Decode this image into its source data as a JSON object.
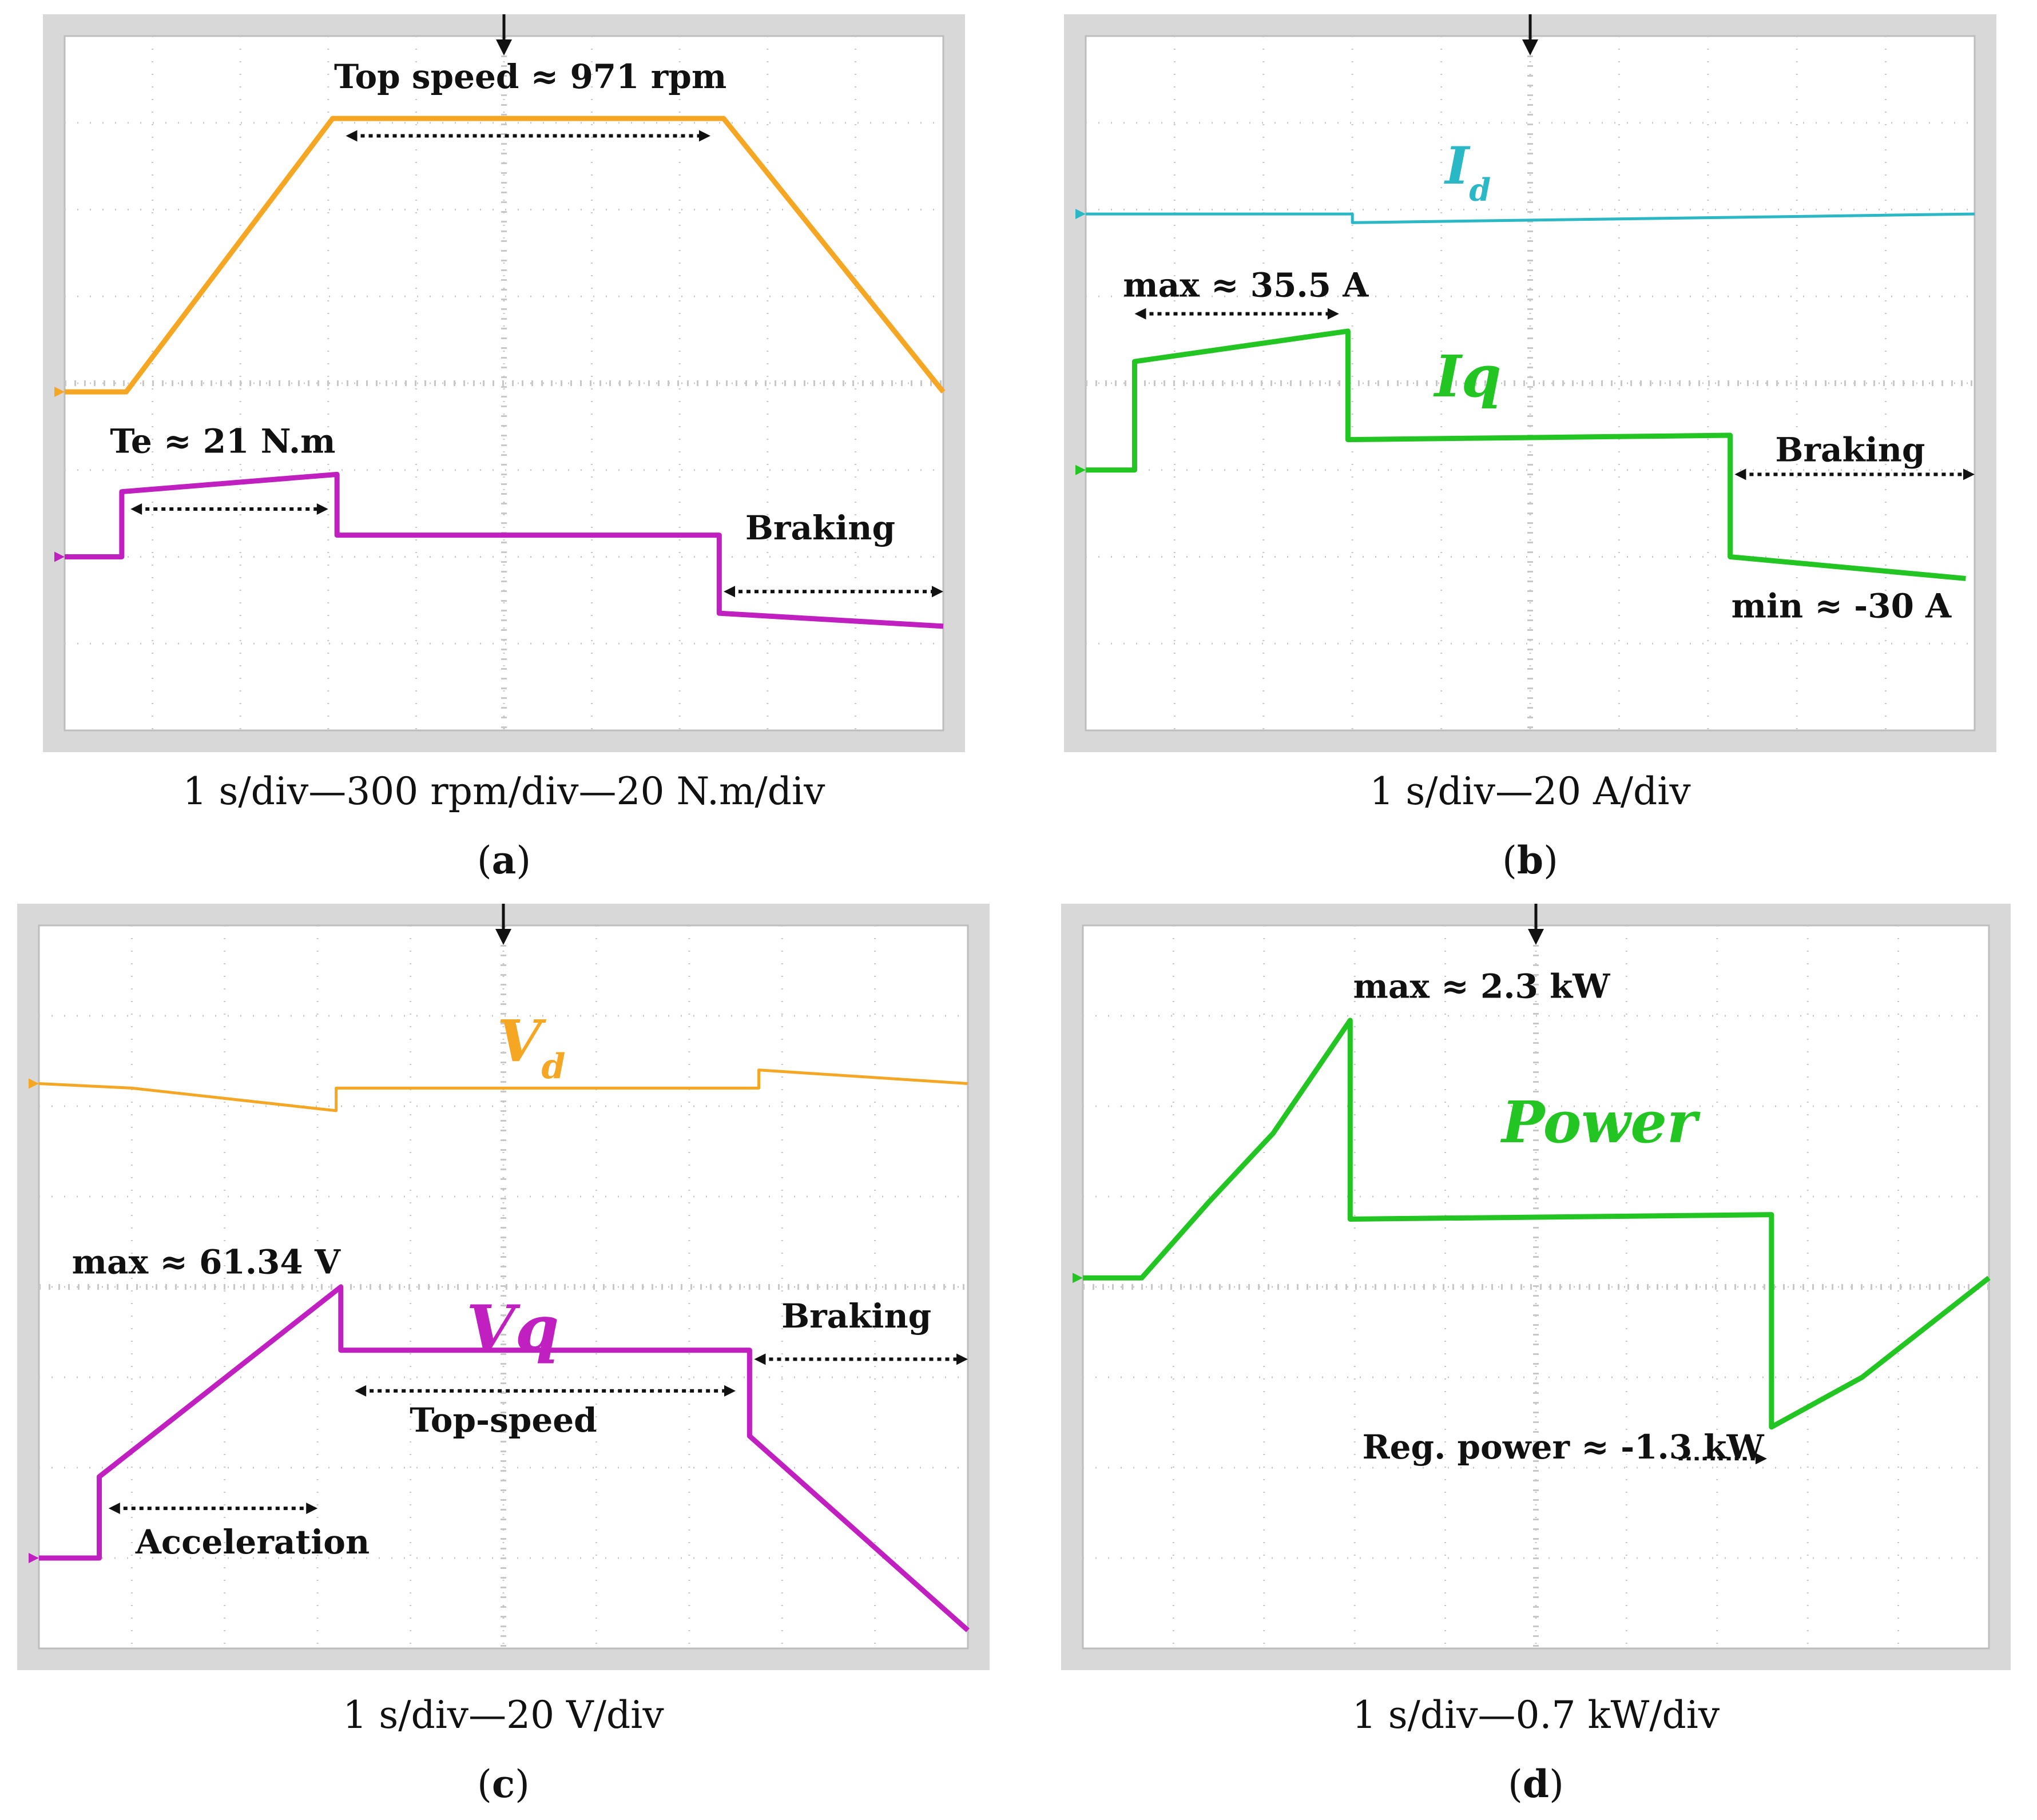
{
  "panels": [
    {
      "tag": "a",
      "caption": "1 s/div—300 rpm/div—20 N.m/div"
    },
    {
      "tag": "b",
      "caption": "1 s/div—20 A/div"
    },
    {
      "tag": "c",
      "caption": "1 s/div—20 V/div"
    },
    {
      "tag": "d",
      "caption": "1 s/div—0.7 kW/div"
    }
  ],
  "chart_data": [
    {
      "type": "line",
      "panel": "a",
      "grid": true,
      "xdivs": 10,
      "ydivs": 8,
      "xlim": [
        0,
        10
      ],
      "ylim": [
        0,
        8
      ],
      "series": [
        {
          "color": "#f5a623",
          "thickness": "heavy",
          "x": [
            0,
            0.7,
            3.05,
            7.5,
            10
          ],
          "y": [
            3.9,
            3.9,
            7.05,
            7.05,
            3.9
          ]
        },
        {
          "color": "#c020c0",
          "thickness": "heavy",
          "x": [
            0,
            0.65,
            0.65,
            3.1,
            3.1,
            7.45,
            7.45,
            10
          ],
          "y": [
            2.0,
            2.0,
            2.75,
            2.95,
            2.25,
            2.25,
            1.35,
            1.2
          ]
        }
      ],
      "annotations": [
        {
          "text": "Top speed ≈ 971 rpm",
          "x": 5.3,
          "y": 7.4
        },
        {
          "text": "Te ≈ 21 N.m",
          "x": 1.8,
          "y": 3.2
        },
        {
          "text": "Braking",
          "x": 8.6,
          "y": 2.2
        }
      ],
      "arrows": [
        {
          "x1": 3.2,
          "x2": 7.35,
          "y": 6.85
        },
        {
          "x1": 0.75,
          "x2": 3.0,
          "y": 2.55
        },
        {
          "x1": 7.5,
          "x2": 10,
          "y": 1.6
        }
      ]
    },
    {
      "type": "line",
      "panel": "b",
      "grid": true,
      "xdivs": 10,
      "ydivs": 8,
      "xlim": [
        0,
        10
      ],
      "ylim": [
        0,
        8
      ],
      "series": [
        {
          "name": "Id",
          "color": "#2ab7c6",
          "x": [
            0,
            3.0,
            3.0,
            10
          ],
          "y": [
            5.95,
            5.95,
            5.85,
            5.95
          ]
        },
        {
          "name": "Iq",
          "color": "#22c522",
          "thickness": "heavy",
          "x": [
            0,
            0.55,
            0.55,
            2.95,
            2.95,
            7.25,
            7.25,
            9.9
          ],
          "y": [
            3.0,
            3.0,
            4.25,
            4.6,
            3.35,
            3.4,
            2.0,
            1.75
          ]
        }
      ],
      "annotations": [
        {
          "text": "max ≈ 35.5 A",
          "x": 1.8,
          "y": 5.0
        },
        {
          "text": "Braking",
          "x": 8.6,
          "y": 3.1
        },
        {
          "text": "min ≈ -30 A",
          "x": 8.5,
          "y": 1.3
        }
      ],
      "arrows": [
        {
          "x1": 0.55,
          "x2": 2.85,
          "y": 4.8
        },
        {
          "x1": 7.3,
          "x2": 10,
          "y": 2.95
        }
      ]
    },
    {
      "type": "line",
      "panel": "c",
      "grid": true,
      "xdivs": 10,
      "ydivs": 8,
      "xlim": [
        0,
        10
      ],
      "ylim": [
        0,
        8
      ],
      "series": [
        {
          "name": "Vd",
          "color": "#f5a623",
          "x": [
            0,
            1.0,
            3.2,
            3.2,
            7.75,
            7.75,
            10
          ],
          "y": [
            6.25,
            6.2,
            5.95,
            6.2,
            6.2,
            6.4,
            6.25
          ]
        },
        {
          "name": "Vq",
          "color": "#c020c0",
          "thickness": "heavy",
          "x": [
            0,
            0.65,
            0.65,
            3.25,
            3.25,
            7.65,
            7.65,
            10
          ],
          "y": [
            1.0,
            1.0,
            1.9,
            4.0,
            3.3,
            3.3,
            2.35,
            0.2
          ]
        }
      ],
      "annotations": [
        {
          "text": "max ≈ 61.34 V",
          "x": 1.8,
          "y": 4.15
        },
        {
          "text": "Braking",
          "x": 8.8,
          "y": 3.55
        },
        {
          "text": "Top-speed",
          "x": 5.0,
          "y": 2.4
        },
        {
          "text": "Acceleration",
          "x": 2.3,
          "y": 1.05
        }
      ],
      "arrows": [
        {
          "x1": 3.4,
          "x2": 7.5,
          "y": 2.85
        },
        {
          "x1": 0.75,
          "x2": 3.0,
          "y": 1.55
        },
        {
          "x1": 7.7,
          "x2": 10,
          "y": 3.2
        }
      ]
    },
    {
      "type": "line",
      "panel": "d",
      "grid": true,
      "xdivs": 10,
      "ydivs": 8,
      "xlim": [
        0,
        10
      ],
      "ylim": [
        0,
        8
      ],
      "series": [
        {
          "name": "Power",
          "color": "#22c522",
          "thickness": "heavy",
          "x": [
            0,
            0.65,
            1.4,
            2.1,
            2.95,
            2.95,
            7.6,
            7.6,
            8.6,
            10
          ],
          "y": [
            4.1,
            4.1,
            4.95,
            5.7,
            6.95,
            4.75,
            4.8,
            2.45,
            3.0,
            4.1
          ]
        }
      ],
      "annotations": [
        {
          "text": "max ≈ 2.3 kW",
          "x": 4.4,
          "y": 7.2
        },
        {
          "text": "Reg. power ≈ -1.3 kW",
          "x": 5.3,
          "y": 2.1
        }
      ],
      "arrows": [
        {
          "x1": 6.5,
          "x2": 7.55,
          "y": 2.1,
          "head": "end"
        }
      ]
    }
  ]
}
